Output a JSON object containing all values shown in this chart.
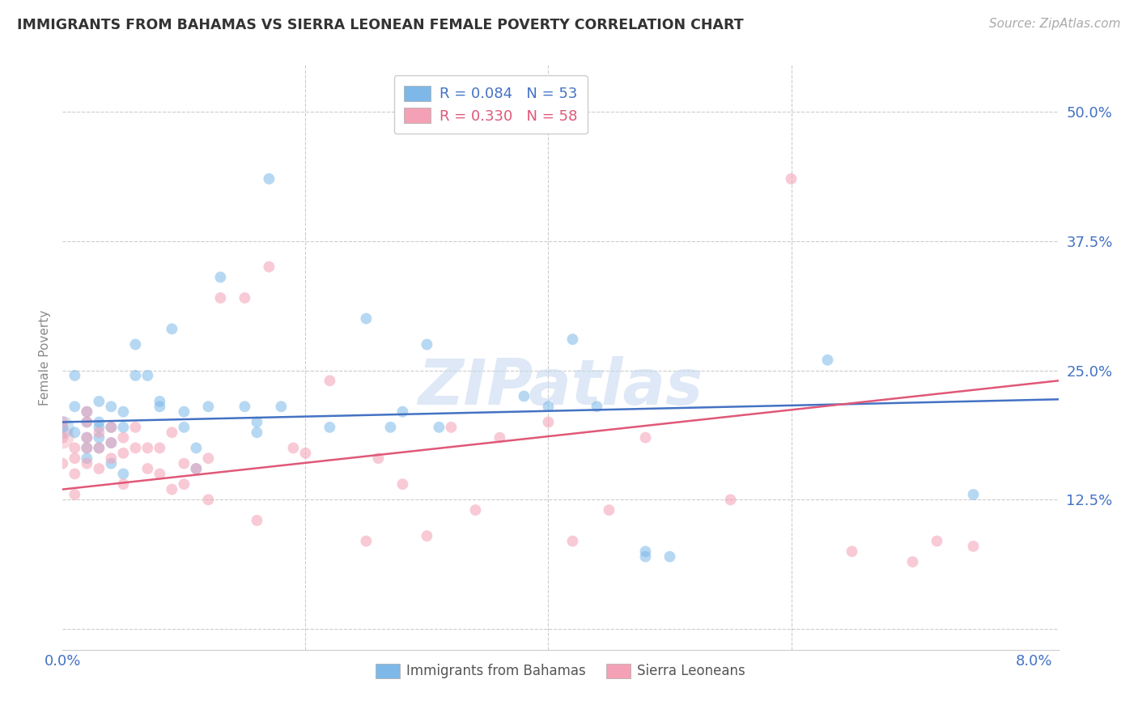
{
  "title": "IMMIGRANTS FROM BAHAMAS VS SIERRA LEONEAN FEMALE POVERTY CORRELATION CHART",
  "source": "Source: ZipAtlas.com",
  "ylabel": "Female Poverty",
  "yticks": [
    0.0,
    0.125,
    0.25,
    0.375,
    0.5
  ],
  "ytick_labels": [
    "",
    "12.5%",
    "25.0%",
    "37.5%",
    "50.0%"
  ],
  "xticks": [
    0.0,
    0.02,
    0.04,
    0.06,
    0.08
  ],
  "xtick_labels": [
    "0.0%",
    "",
    "",
    "",
    "8.0%"
  ],
  "xlim": [
    0.0,
    0.082
  ],
  "ylim": [
    -0.02,
    0.545
  ],
  "legend_r1": "R = 0.084",
  "legend_n1": "N = 53",
  "legend_r2": "R = 0.330",
  "legend_n2": "N = 58",
  "color_blue": "#7db8e8",
  "color_pink": "#f4a0b5",
  "color_blue_dark": "#4472c4",
  "color_pink_dark": "#e05878",
  "background_color": "#ffffff",
  "grid_color": "#cccccc",
  "watermark": "ZIPatlas",
  "marker_size": 100,
  "marker_alpha": 0.55,
  "line_width": 1.8,
  "blue_x": [
    0.0,
    0.001,
    0.001,
    0.002,
    0.002,
    0.002,
    0.002,
    0.003,
    0.003,
    0.003,
    0.003,
    0.004,
    0.004,
    0.004,
    0.005,
    0.005,
    0.006,
    0.006,
    0.007,
    0.008,
    0.008,
    0.009,
    0.01,
    0.01,
    0.011,
    0.011,
    0.012,
    0.013,
    0.015,
    0.016,
    0.016,
    0.017,
    0.018,
    0.022,
    0.025,
    0.027,
    0.028,
    0.03,
    0.031,
    0.038,
    0.04,
    0.042,
    0.044,
    0.048,
    0.048,
    0.05,
    0.063,
    0.075,
    0.001,
    0.002,
    0.003,
    0.004,
    0.005
  ],
  "blue_y": [
    0.195,
    0.245,
    0.215,
    0.21,
    0.2,
    0.185,
    0.175,
    0.22,
    0.2,
    0.195,
    0.185,
    0.215,
    0.195,
    0.18,
    0.21,
    0.195,
    0.275,
    0.245,
    0.245,
    0.22,
    0.215,
    0.29,
    0.21,
    0.195,
    0.175,
    0.155,
    0.215,
    0.34,
    0.215,
    0.2,
    0.19,
    0.435,
    0.215,
    0.195,
    0.3,
    0.195,
    0.21,
    0.275,
    0.195,
    0.225,
    0.215,
    0.28,
    0.215,
    0.075,
    0.07,
    0.07,
    0.26,
    0.13,
    0.19,
    0.165,
    0.175,
    0.16,
    0.15
  ],
  "pink_x": [
    0.0,
    0.0,
    0.0,
    0.001,
    0.001,
    0.001,
    0.001,
    0.002,
    0.002,
    0.002,
    0.002,
    0.002,
    0.003,
    0.003,
    0.003,
    0.004,
    0.004,
    0.004,
    0.005,
    0.005,
    0.005,
    0.006,
    0.006,
    0.007,
    0.007,
    0.008,
    0.008,
    0.009,
    0.009,
    0.01,
    0.01,
    0.011,
    0.012,
    0.012,
    0.013,
    0.015,
    0.016,
    0.017,
    0.019,
    0.02,
    0.022,
    0.025,
    0.026,
    0.028,
    0.03,
    0.032,
    0.034,
    0.036,
    0.04,
    0.042,
    0.045,
    0.048,
    0.055,
    0.06,
    0.065,
    0.07,
    0.072,
    0.075
  ],
  "pink_y": [
    0.2,
    0.185,
    0.16,
    0.175,
    0.165,
    0.15,
    0.13,
    0.21,
    0.2,
    0.185,
    0.175,
    0.16,
    0.19,
    0.175,
    0.155,
    0.195,
    0.18,
    0.165,
    0.185,
    0.17,
    0.14,
    0.195,
    0.175,
    0.175,
    0.155,
    0.175,
    0.15,
    0.19,
    0.135,
    0.16,
    0.14,
    0.155,
    0.165,
    0.125,
    0.32,
    0.32,
    0.105,
    0.35,
    0.175,
    0.17,
    0.24,
    0.085,
    0.165,
    0.14,
    0.09,
    0.195,
    0.115,
    0.185,
    0.2,
    0.085,
    0.115,
    0.185,
    0.125,
    0.435,
    0.075,
    0.065,
    0.085,
    0.08
  ]
}
